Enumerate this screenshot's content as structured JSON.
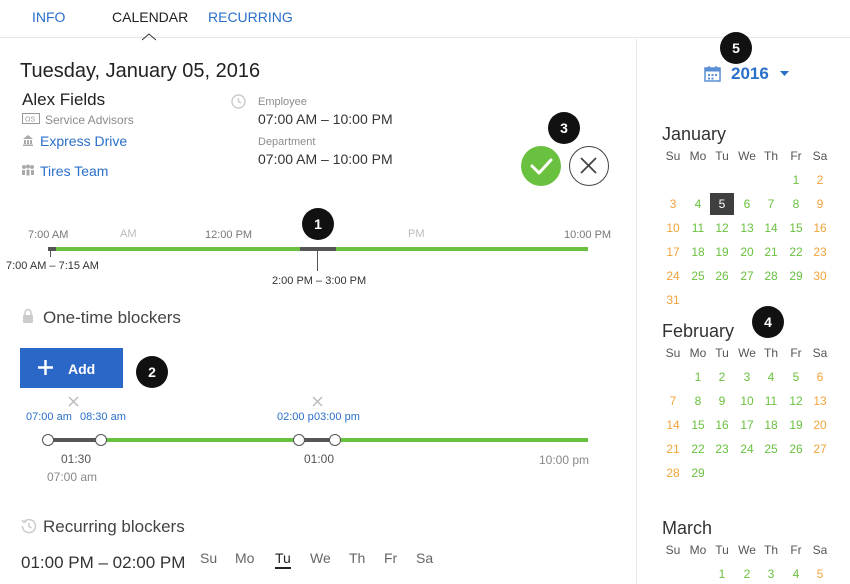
{
  "tabs": {
    "info": "INFO",
    "calendar": "CALENDAR",
    "recurring": "RECURRING"
  },
  "details": {
    "date_title": "Tuesday, January 05, 2016",
    "person_name": "Alex Fields",
    "role": "Service Advisors",
    "location": "Express Drive",
    "team": "Tires Team",
    "employee_label": "Employee",
    "employee_hours": "07:00 AM – 10:00 PM",
    "department_label": "Department",
    "department_hours": "07:00 AM – 10:00 PM"
  },
  "timeline": {
    "label_7am": "7:00 AM",
    "label_am": "AM",
    "label_12pm": "12:00 PM",
    "label_pm": "PM",
    "label_10pm": "10:00 PM",
    "range_left": "7:00 AM – 7:15 AM",
    "range_center": "2:00 PM – 3:00 PM"
  },
  "onetime": {
    "title": "One-time blockers",
    "add_label": "Add",
    "b1_start": "07:00 am",
    "b1_end": "08:30 am",
    "b2_start": "02:00 p",
    "b2_end": "03:00 pm",
    "dur1": "01:30",
    "start_label": "07:00 am",
    "dur2": "01:00",
    "end_label": "10:00 pm"
  },
  "recurring": {
    "title": "Recurring blockers",
    "time_range": "01:00 PM – 02:00 PM",
    "weekdays": [
      "Su",
      "Mo",
      "Tu",
      "We",
      "Th",
      "Fr",
      "Sa"
    ],
    "selected_weekday": "Tu"
  },
  "bubbles": [
    "1",
    "2",
    "3",
    "4",
    "5"
  ],
  "calendar": {
    "year": "2016",
    "dow": [
      "Su",
      "Mo",
      "Tu",
      "We",
      "Th",
      "Fr",
      "Sa"
    ],
    "months": [
      {
        "name": "January",
        "offset": 5,
        "days": 31,
        "selected": 5
      },
      {
        "name": "February",
        "offset": 1,
        "days": 29,
        "selected": null
      },
      {
        "name": "March",
        "offset": 2,
        "days": 5,
        "selected": null
      }
    ]
  },
  "colors": {
    "accent": "#2a6fc9",
    "green": "#6ac13f",
    "orange": "#f0a33c"
  }
}
